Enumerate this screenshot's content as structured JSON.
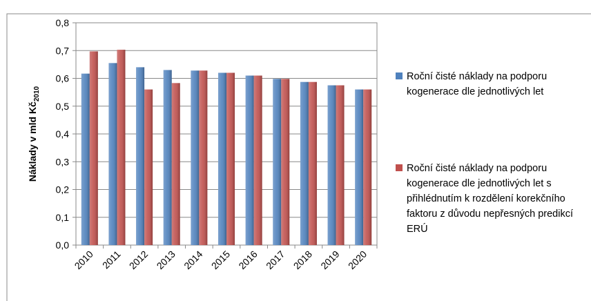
{
  "chart_data": {
    "type": "bar",
    "ylabel": {
      "text": "Náklady v mld Kč",
      "subscript": "2010"
    },
    "categories": [
      "2010",
      "2011",
      "2012",
      "2013",
      "2014",
      "2015",
      "2016",
      "2017",
      "2018",
      "2019",
      "2020"
    ],
    "series": [
      {
        "name": "Roční čisté náklady na podporu kogenerace dle jednotlivých let",
        "color": "#4f81bd",
        "values": [
          0.617,
          0.655,
          0.64,
          0.63,
          0.628,
          0.62,
          0.61,
          0.598,
          0.587,
          0.575,
          0.56
        ]
      },
      {
        "name": "Roční čisté náklady na podporu kogenerace dle jednotlivých let s přihlédnutím k rozdělení korekčního faktoru z důvodu nepřesných predikcí ERÚ",
        "color": "#c0504d",
        "values": [
          0.697,
          0.703,
          0.56,
          0.583,
          0.628,
          0.62,
          0.61,
          0.598,
          0.587,
          0.575,
          0.56
        ]
      }
    ],
    "ylim": [
      0,
      0.8
    ],
    "yticks": [
      {
        "value": 0,
        "label": "0,0"
      },
      {
        "value": 0.1,
        "label": "0,1"
      },
      {
        "value": 0.2,
        "label": "0,2"
      },
      {
        "value": 0.3,
        "label": "0,3"
      },
      {
        "value": 0.4,
        "label": "0,4"
      },
      {
        "value": 0.5,
        "label": "0,5"
      },
      {
        "value": 0.6,
        "label": "0,6"
      },
      {
        "value": 0.7,
        "label": "0,7"
      },
      {
        "value": 0.8,
        "label": "0,8"
      }
    ],
    "grid": true,
    "legend": "right"
  }
}
